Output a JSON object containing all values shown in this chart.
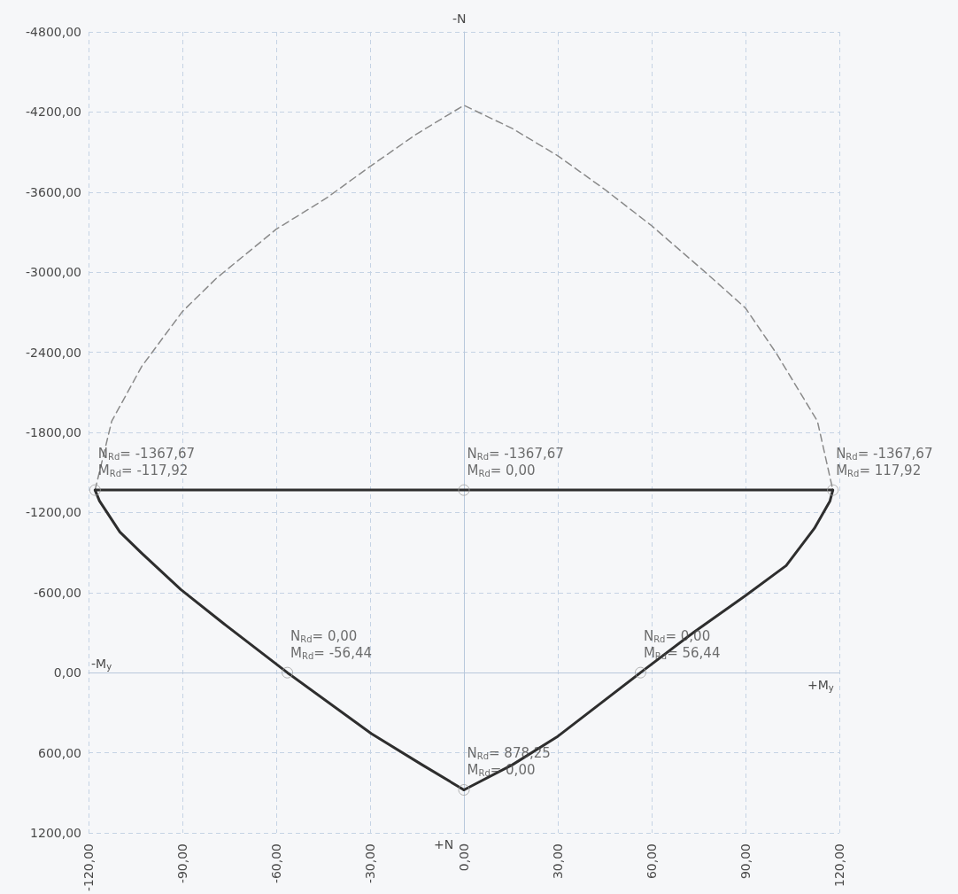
{
  "chart_data": {
    "type": "line",
    "marker": "none",
    "grid": true,
    "xlim": [
      -120,
      120
    ],
    "xticks": [
      {
        "value": -120,
        "label": "-120,00"
      },
      {
        "value": -90,
        "label": "-90,00"
      },
      {
        "value": -60,
        "label": "-60,00"
      },
      {
        "value": -30,
        "label": "-30,00"
      },
      {
        "value": 0,
        "label": "0,00"
      },
      {
        "value": 30,
        "label": "30,00"
      },
      {
        "value": 60,
        "label": "60,00"
      },
      {
        "value": 90,
        "label": "90,00"
      },
      {
        "value": 120,
        "label": "120,00"
      }
    ],
    "ylim": [
      1200,
      -4800
    ],
    "yticks": [
      {
        "value": -4800,
        "label": "-4800,00"
      },
      {
        "value": -4200,
        "label": "-4200,00"
      },
      {
        "value": -3600,
        "label": "-3600,00"
      },
      {
        "value": -3000,
        "label": "-3000,00"
      },
      {
        "value": -2400,
        "label": "-2400,00"
      },
      {
        "value": -1800,
        "label": "-1800,00"
      },
      {
        "value": -1200,
        "label": "-1200,00"
      },
      {
        "value": -600,
        "label": "-600,00"
      },
      {
        "value": 0,
        "label": "0,00"
      },
      {
        "value": 600,
        "label": "600,00"
      },
      {
        "value": 1200,
        "label": "1200,00"
      }
    ],
    "annotations": [
      "-M$_{y}$",
      "+M$_{y}$",
      "-N",
      "+N"
    ],
    "series": [
      {
        "color": "#8a8a8a",
        "line_style": "dashed",
        "x": [
          -117.92,
          -112.6,
          -103,
          -90,
          -79,
          -60,
          -44,
          -30,
          -15.4,
          0,
          15.4,
          30,
          45,
          60,
          77,
          90,
          100,
          113,
          117.92
        ],
        "values": [
          -1367.67,
          -1883,
          -2294,
          -2705,
          -2957,
          -3322,
          -3554,
          -3792,
          -4031,
          -4250,
          -4077,
          -3872,
          -3620,
          -3348,
          -3003,
          -2731,
          -2387,
          -1883,
          -1367.67
        ]
      },
      {
        "color": "#2e2e2e",
        "line_style": "solid",
        "x": [
          -117.92,
          0,
          117.92
        ],
        "values": [
          -1367.67,
          -1367.67,
          -1367.67
        ]
      },
      {
        "color": "#2e2e2e",
        "line_style": "solid",
        "x": [
          -117.92,
          -116.5,
          -110,
          -103,
          -90.5,
          -77,
          -56.44,
          -29.6,
          -13.4,
          0
        ],
        "values": [
          -1367.67,
          -1286,
          -1054,
          -895,
          -623,
          -371,
          0,
          457,
          690,
          878.25
        ]
      },
      {
        "color": "#2e2e2e",
        "line_style": "solid",
        "x": [
          0,
          15.5,
          29.6,
          56.44,
          73.6,
          90,
          103,
          112,
          117,
          117.92
        ],
        "values": [
          878.25,
          690,
          484,
          0,
          -305,
          -577,
          -802,
          -1080,
          -1286,
          -1367.67
        ]
      },
      {
        "type": "scatter",
        "marker": "circle",
        "color": "#a0a0a0",
        "x": [
          -117.92,
          0,
          117.92,
          -56.44,
          56.44,
          0
        ],
        "values": [
          -1367.67,
          -1367.67,
          -1367.67,
          0,
          0,
          878.25
        ],
        "value_labels": [
          "N$_{Rd}$= -1367,67\nM$_{Rd}$= -117,92",
          "N$_{Rd}$= -1367,67\nM$_{Rd}$= 0,00",
          "N$_{Rd}$= -1367,67\nM$_{Rd}$= 117,92",
          "N$_{Rd}$= 0,00\nM$_{Rd}$= -56,44",
          "N$_{Rd}$= 0,00\nM$_{Rd}$= 56,44",
          "N$_{Rd}$= 878,25\nM$_{Rd}$= 0,00"
        ]
      }
    ]
  }
}
